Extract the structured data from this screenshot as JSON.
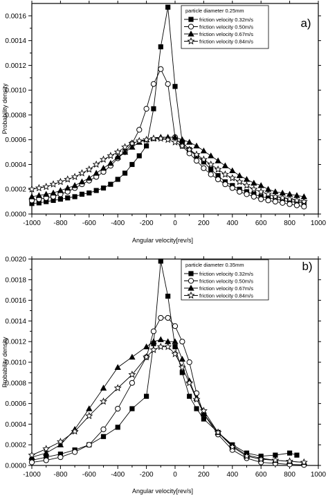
{
  "chart_data": [
    {
      "type": "line",
      "panel_label": "a)",
      "xlabel": "Angular velocity[rev/s]",
      "ylabel": "Probability density",
      "xlim": [
        -1000,
        1000
      ],
      "ylim": [
        0,
        0.0017
      ],
      "x_ticks": [
        "-1000",
        "-800",
        "-600",
        "-400",
        "-200",
        "0",
        "200",
        "400",
        "600",
        "800",
        "1000"
      ],
      "y_ticks": [
        "0.0000",
        "0.0002",
        "0.0004",
        "0.0006",
        "0.0008",
        "0.0010",
        "0.0012",
        "0.0014",
        "0.0016"
      ],
      "legend_title": "particle diameter 0.25mm",
      "legend_position": "top-right",
      "series": [
        {
          "name": "friction velocity  0.32m/s",
          "marker": "filled-square",
          "x": [
            -1000,
            -950,
            -900,
            -850,
            -800,
            -750,
            -700,
            -650,
            -600,
            -550,
            -500,
            -450,
            -400,
            -350,
            -300,
            -250,
            -200,
            -150,
            -100,
            -50,
            0,
            50,
            100,
            150,
            200,
            250,
            300,
            350,
            400,
            450,
            500,
            550,
            600,
            650,
            700,
            750,
            800,
            850,
            900
          ],
          "y": [
            8.5e-05,
            9e-05,
            0.0001,
            0.00011,
            0.00012,
            0.00013,
            0.00014,
            0.00016,
            0.00017,
            0.00019,
            0.00021,
            0.00024,
            0.00028,
            0.00033,
            0.0004,
            0.00047,
            0.00055,
            0.00085,
            0.00135,
            0.00167,
            0.00103,
            0.00058,
            0.00052,
            0.00047,
            0.00042,
            0.00036,
            0.00031,
            0.00026,
            0.00023,
            0.0002,
            0.00018,
            0.00016,
            0.00014,
            0.00013,
            0.00012,
            0.00011,
            0.0001,
            9.5e-05,
            9e-05
          ]
        },
        {
          "name": "friction velocity  0.50m/s",
          "marker": "open-circle",
          "x": [
            -1000,
            -950,
            -900,
            -850,
            -800,
            -750,
            -700,
            -650,
            -600,
            -550,
            -500,
            -450,
            -400,
            -350,
            -300,
            -250,
            -200,
            -150,
            -100,
            -50,
            0,
            50,
            100,
            150,
            200,
            250,
            300,
            350,
            400,
            450,
            500,
            550,
            600,
            650,
            700,
            750,
            800,
            850,
            900
          ],
          "y": [
            0.00011,
            0.00012,
            0.00013,
            0.00014,
            0.00016,
            0.00018,
            0.00021,
            0.00024,
            0.00027,
            0.0003,
            0.00034,
            0.00039,
            0.00045,
            0.0005,
            0.00057,
            0.00068,
            0.00085,
            0.00105,
            0.00117,
            0.00105,
            0.00062,
            0.00055,
            0.00049,
            0.00043,
            0.00037,
            0.00032,
            0.00028,
            0.00024,
            0.00021,
            0.00018,
            0.00016,
            0.00014,
            0.00012,
            0.00011,
            0.0001,
            9e-05,
            8e-05,
            7e-05,
            6e-05
          ]
        },
        {
          "name": "friction velocity  0.67m/s",
          "marker": "filled-triangle",
          "x": [
            -1000,
            -950,
            -900,
            -850,
            -800,
            -750,
            -700,
            -650,
            -600,
            -550,
            -500,
            -450,
            -400,
            -350,
            -300,
            -250,
            -200,
            -150,
            -100,
            -50,
            0,
            50,
            100,
            150,
            200,
            250,
            300,
            350,
            400,
            450,
            500,
            550,
            600,
            650,
            700,
            750,
            800,
            850,
            900
          ],
          "y": [
            0.00014,
            0.00015,
            0.00016,
            0.00017,
            0.00019,
            0.00021,
            0.00023,
            0.00026,
            0.00029,
            0.00033,
            0.00037,
            0.00041,
            0.00046,
            0.0005,
            0.00054,
            0.00058,
            0.0006,
            0.00061,
            0.00062,
            0.00062,
            0.00062,
            0.0006,
            0.00058,
            0.00055,
            0.00051,
            0.00047,
            0.00043,
            0.00039,
            0.00035,
            0.00031,
            0.00028,
            0.00025,
            0.00023,
            0.0002,
            0.00018,
            0.00017,
            0.00016,
            0.00015,
            0.00014
          ]
        },
        {
          "name": "friction velocity  0.84m/s",
          "marker": "open-star",
          "x": [
            -1000,
            -950,
            -900,
            -850,
            -800,
            -750,
            -700,
            -650,
            -600,
            -550,
            -500,
            -450,
            -400,
            -350,
            -300,
            -250,
            -200,
            -150,
            -100,
            -50,
            0,
            50,
            100,
            150,
            200,
            250,
            300,
            350,
            400,
            450,
            500,
            550,
            600,
            650,
            700,
            750,
            800,
            850,
            900
          ],
          "y": [
            0.0002,
            0.00021,
            0.00022,
            0.00024,
            0.00026,
            0.00028,
            0.0003,
            0.00033,
            0.00036,
            0.0004,
            0.00044,
            0.00047,
            0.0005,
            0.00054,
            0.00057,
            0.00059,
            0.0006,
            0.00061,
            0.00061,
            0.0006,
            0.00058,
            0.00055,
            0.00052,
            0.00048,
            0.00044,
            0.0004,
            0.00036,
            0.00032,
            0.00029,
            0.00026,
            0.00023,
            0.0002,
            0.00018,
            0.00016,
            0.00014,
            0.00013,
            0.00012,
            0.00011,
            0.0001
          ]
        }
      ]
    },
    {
      "type": "line",
      "panel_label": "b)",
      "xlabel": "Angular velocity[rev/s]",
      "ylabel": "Probability density",
      "xlim": [
        -1000,
        1000
      ],
      "ylim": [
        0,
        0.002
      ],
      "x_ticks": [
        "-1000",
        "-800",
        "-600",
        "-400",
        "-200",
        "0",
        "200",
        "400",
        "600",
        "800",
        "1000"
      ],
      "y_ticks": [
        "0.0000",
        "0.0002",
        "0.0004",
        "0.0006",
        "0.0008",
        "0.0010",
        "0.0012",
        "0.0014",
        "0.0016",
        "0.0018",
        "0.0020"
      ],
      "legend_title": "particle diameter 0.35mm",
      "legend_position": "top-right",
      "series": [
        {
          "name": "friction velocity  0.32m/s",
          "marker": "filled-square",
          "x": [
            -1000,
            -900,
            -800,
            -700,
            -600,
            -500,
            -400,
            -300,
            -200,
            -150,
            -100,
            -50,
            0,
            50,
            100,
            150,
            200,
            300,
            400,
            500,
            600,
            700,
            800,
            850
          ],
          "y": [
            5e-05,
            8e-05,
            0.00011,
            0.00015,
            0.0002,
            0.00028,
            0.00037,
            0.00055,
            0.00067,
            0.00118,
            0.00198,
            0.00164,
            0.00115,
            0.0009,
            0.00067,
            0.00055,
            0.00045,
            0.00032,
            0.0002,
            0.00012,
            9e-05,
            0.0001,
            0.00012,
            0.0001
          ]
        },
        {
          "name": "friction velocity  0.50m/s",
          "marker": "open-circle",
          "x": [
            -1000,
            -900,
            -800,
            -700,
            -600,
            -500,
            -400,
            -300,
            -200,
            -150,
            -100,
            -50,
            0,
            50,
            100,
            150,
            200,
            300,
            400,
            500,
            600,
            700,
            800,
            900
          ],
          "y": [
            3e-05,
            5e-05,
            8e-05,
            0.00013,
            0.0002,
            0.00035,
            0.00055,
            0.0008,
            0.00105,
            0.0013,
            0.00143,
            0.00143,
            0.00135,
            0.0012,
            0.001,
            0.0007,
            0.0005,
            0.0003,
            0.00015,
            7e-05,
            3e-05,
            2e-05,
            1e-05,
            5e-06
          ]
        },
        {
          "name": "friction velocity  0.67m/s",
          "marker": "filled-triangle",
          "x": [
            -1000,
            -900,
            -800,
            -700,
            -600,
            -500,
            -400,
            -300,
            -200,
            -150,
            -100,
            -50,
            0,
            50,
            100,
            150,
            200,
            300,
            400,
            500,
            600,
            700,
            800,
            900
          ],
          "y": [
            8e-05,
            0.00012,
            0.0002,
            0.00035,
            0.00055,
            0.00075,
            0.00095,
            0.00105,
            0.00115,
            0.0012,
            0.00122,
            0.0012,
            0.0012,
            0.00103,
            0.00082,
            0.00065,
            0.0005,
            0.00032,
            0.00019,
            0.0001,
            7e-05,
            5e-05,
            4e-05,
            3e-05
          ]
        },
        {
          "name": "friction velocity  0.84m/s",
          "marker": "open-star",
          "x": [
            -1000,
            -900,
            -800,
            -700,
            -600,
            -500,
            -400,
            -300,
            -200,
            -150,
            -100,
            -50,
            0,
            50,
            100,
            150,
            200,
            300,
            400,
            500,
            600,
            700,
            800,
            900
          ],
          "y": [
            0.0001,
            0.00016,
            0.00023,
            0.00033,
            0.00048,
            0.00062,
            0.00075,
            0.00088,
            0.00105,
            0.00112,
            0.00115,
            0.00115,
            0.00108,
            0.00095,
            0.0008,
            0.00064,
            0.00053,
            0.00032,
            0.00018,
            9e-05,
            6e-05,
            5e-05,
            4e-05,
            3e-05
          ]
        }
      ]
    }
  ]
}
